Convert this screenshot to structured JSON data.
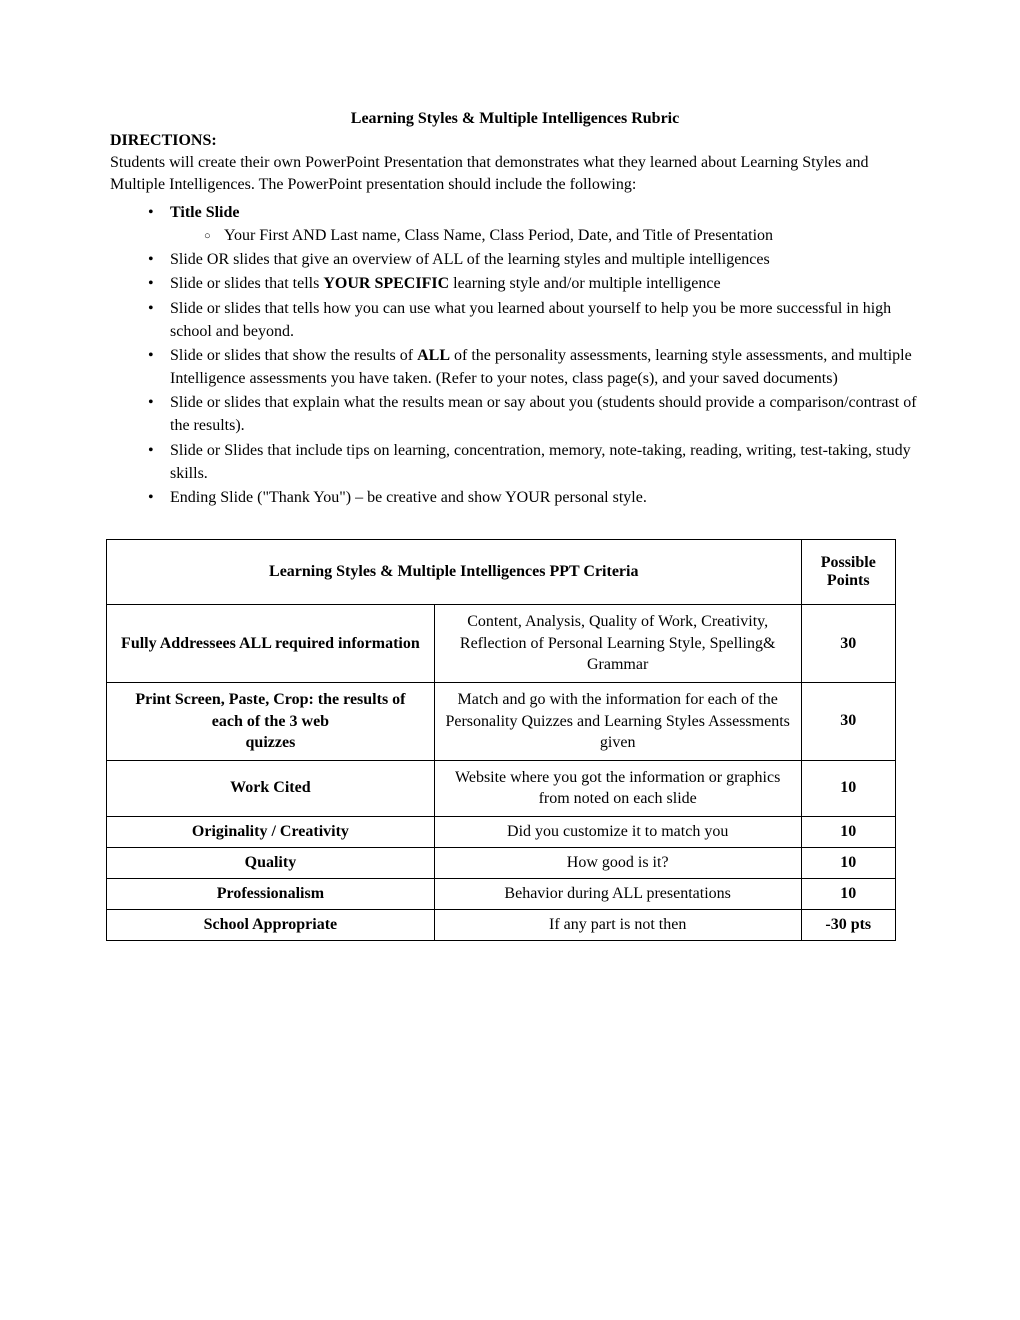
{
  "title": "Learning Styles & Multiple Intelligences Rubric",
  "directions_label": "DIRECTIONS:",
  "directions_text": "Students will create their own PowerPoint Presentation that demonstrates what they learned about Learning Styles and Multiple Intelligences.  The PowerPoint presentation should include the following:",
  "bullets": {
    "b1_bold": "Title Slide",
    "b1_sub": "Your First AND Last name, Class Name, Class Period, Date, and Title of Presentation",
    "b2": "Slide OR slides that give an overview of ALL of the learning styles and multiple intelligences",
    "b3_a": "Slide or slides that tells ",
    "b3_bold": "YOUR SPECIFIC",
    "b3_b": " learning style and/or multiple intelligence",
    "b4": "Slide or slides that tells how you can use what you learned about yourself to help you be more successful in high school and beyond.",
    "b5_a": "Slide or slides that show the results of ",
    "b5_bold": "ALL",
    "b5_b": " of the personality assessments, learning style assessments, and multiple Intelligence assessments you have taken. (Refer to your notes, class page(s), and your saved documents)",
    "b6": "Slide or slides that explain what the results mean or say about you (students should provide a comparison/contrast of the results).",
    "b7": "Slide or Slides that include tips on learning, concentration, memory, note-taking, reading, writing, test-taking, study skills.",
    "b8": "Ending Slide (\"Thank You\") – be creative and show YOUR personal style."
  },
  "table": {
    "header_criteria": "Learning Styles & Multiple Intelligences PPT Criteria",
    "header_points": "Possible Points",
    "rows": [
      {
        "c1": "Fully Addressees ALL required information",
        "c2": "Content, Analysis, Quality of Work, Creativity, Reflection of Personal Learning Style, Spelling& Grammar",
        "c3": "30"
      },
      {
        "c1_line1": "Print Screen, Paste, Crop: the results of",
        "c1_line2": "each of the 3 web",
        "c1_line3": "quizzes",
        "c2": "Match and go with the information for each of the Personality Quizzes and Learning Styles Assessments given",
        "c3": "30"
      },
      {
        "c1": "Work Cited",
        "c2": "Website where you got the information or graphics from noted on each slide",
        "c3": "10"
      },
      {
        "c1": "Originality / Creativity",
        "c2": "Did you customize it to match you",
        "c3": "10"
      },
      {
        "c1": "Quality",
        "c2": "How good is it?",
        "c3": "10"
      },
      {
        "c1": "Professionalism",
        "c2": "Behavior during ALL presentations",
        "c3": "10"
      },
      {
        "c1": "School Appropriate",
        "c2": "If any part is not then",
        "c3": "-30 pts"
      }
    ]
  }
}
